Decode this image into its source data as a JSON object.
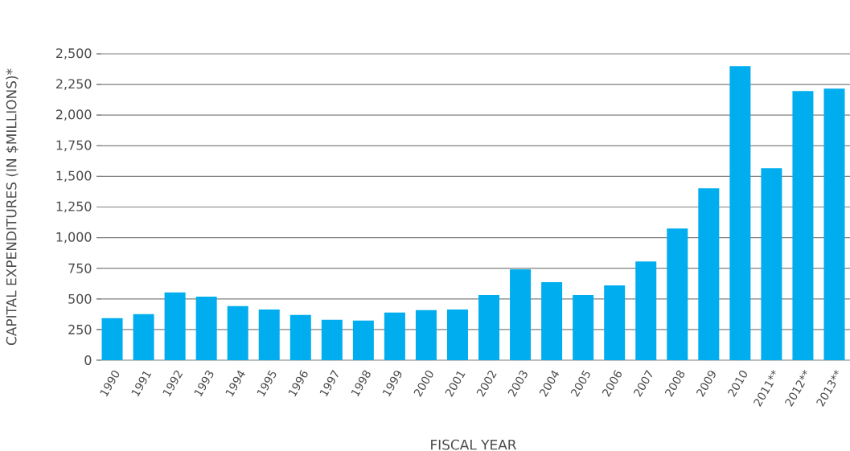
{
  "chart_data": {
    "type": "bar",
    "xlabel": "FISCAL YEAR",
    "ylabel": "CAPITAL EXPENDITURES (IN $MILLIONS)*",
    "categories": [
      "1990",
      "1991",
      "1992",
      "1993",
      "1994",
      "1995",
      "1996",
      "1997",
      "1998",
      "1999",
      "2000",
      "2001",
      "2002",
      "2003",
      "2004",
      "2005",
      "2006",
      "2007",
      "2008",
      "2009",
      "2010",
      "2011**",
      "2012**",
      "2013**"
    ],
    "values": [
      342,
      375,
      552,
      519,
      441,
      414,
      369,
      329,
      323,
      388,
      408,
      414,
      531,
      741,
      636,
      531,
      610,
      806,
      1075,
      1403,
      2400,
      1567,
      2196,
      2216
    ],
    "color": "#00adee",
    "ylim": [
      0,
      2500
    ],
    "yticks": [
      0,
      {
        "value": 250,
        "label": "250"
      },
      {
        "value": 500,
        "label": "500"
      },
      {
        "value": 750,
        "label": "750"
      },
      {
        "value": 1000,
        "label": "1,000"
      },
      {
        "value": 1250,
        "label": "1,250"
      },
      {
        "value": 1500,
        "label": "1,500"
      },
      {
        "value": 1750,
        "label": "1,750"
      },
      {
        "value": 2000,
        "label": "2,000"
      },
      {
        "value": 2250,
        "label": "2,250"
      },
      {
        "value": 2500,
        "label": "2,500"
      }
    ],
    "grid": "y"
  }
}
